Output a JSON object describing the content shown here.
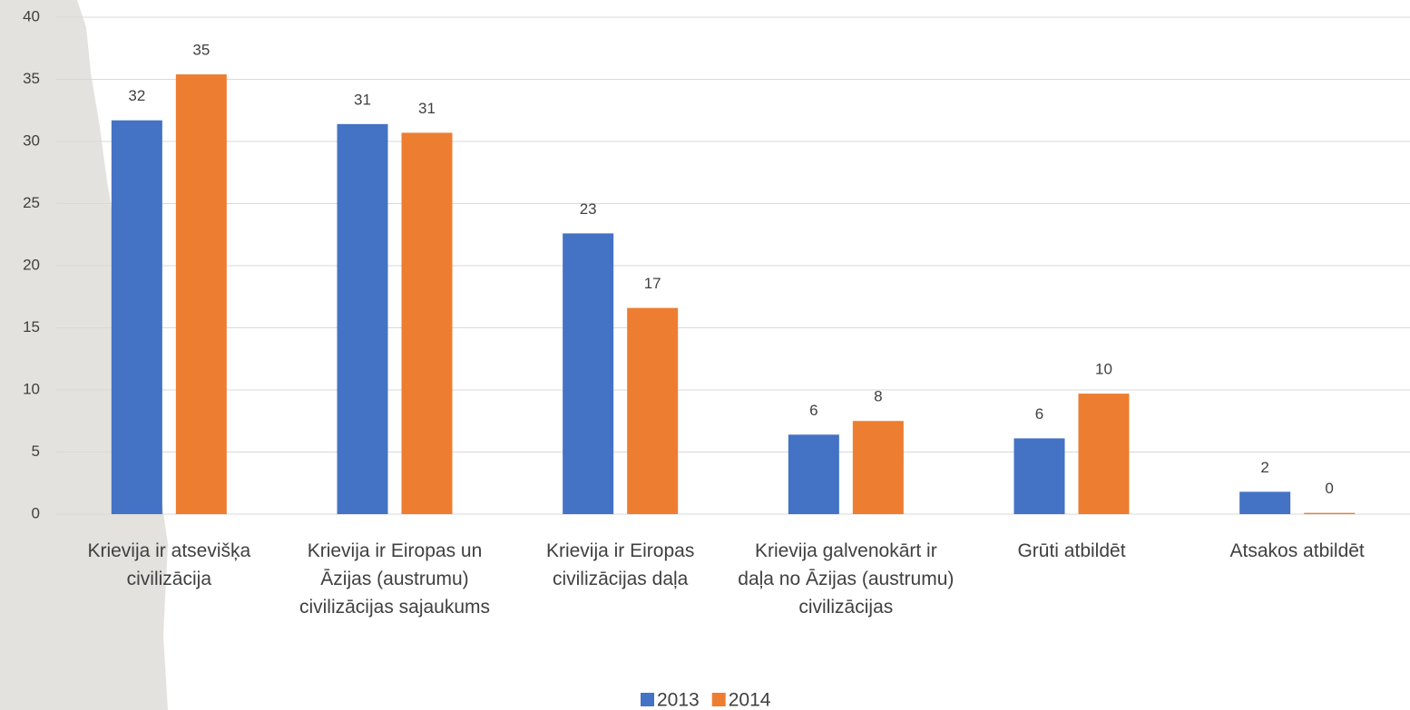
{
  "chart_data": {
    "type": "bar",
    "categories": [
      "Krievija ir atsevišķa civilizācija",
      "Krievija ir Eiropas un Āzijas (austrumu) civilizācijas sajaukums",
      "Krievija ir Eiropas civilizācijas daļa",
      "Krievija galvenokārt ir daļa no Āzijas (austrumu) civilizācijas",
      "Grūti atbildēt",
      "Atsakos atbildēt"
    ],
    "series": [
      {
        "name": "2013",
        "color": "#4472c4",
        "values": [
          31.7,
          31.4,
          22.6,
          6.4,
          6.1,
          1.8
        ],
        "value_labels": [
          "32",
          "31",
          "23",
          "6",
          "6",
          "2"
        ]
      },
      {
        "name": "2014",
        "color": "#ed7d31",
        "values": [
          35.4,
          30.7,
          16.6,
          7.5,
          9.7,
          0.1
        ],
        "value_labels": [
          "35",
          "31",
          "17",
          "8",
          "10",
          "0"
        ]
      }
    ],
    "ylim": [
      0,
      40
    ],
    "yticks": [
      0,
      5,
      10,
      15,
      20,
      25,
      30,
      35,
      40
    ],
    "grid": true,
    "legend": "bottom"
  }
}
